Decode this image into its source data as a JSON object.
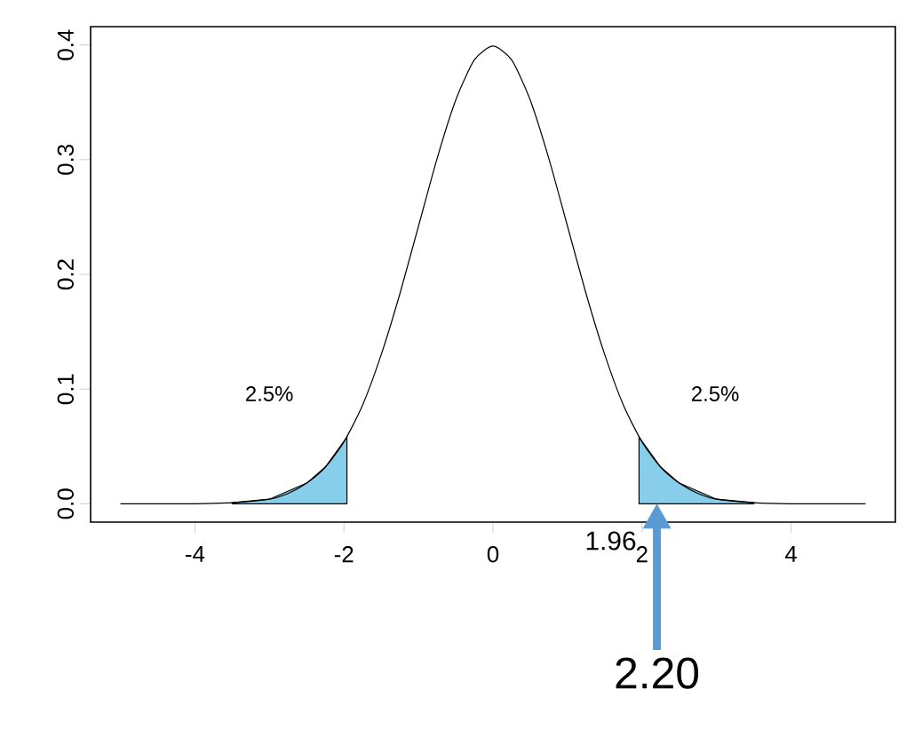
{
  "chart_data": {
    "type": "line",
    "xlim": [
      -5.4,
      5.4
    ],
    "ylim": [
      -0.016,
      0.416
    ],
    "xticks": [
      -4,
      -2,
      0,
      2,
      4
    ],
    "yticks": [
      {
        "value": 0,
        "label": "0.0"
      },
      0.1,
      0.2,
      0.3,
      0.4
    ],
    "series": [
      {
        "type": "area",
        "color": "#87ceeb",
        "x": [
          -3.5,
          -3,
          -2.5,
          -2.25,
          -1.96
        ],
        "values": [
          0.001,
          0.004,
          0.018,
          0.032,
          0.058
        ]
      },
      {
        "type": "area",
        "color": "#87ceeb",
        "x": [
          1.96,
          2.25,
          2.5,
          3,
          3.5
        ],
        "values": [
          0.058,
          0.032,
          0.018,
          0.004,
          0.001
        ]
      },
      {
        "color": "#000000",
        "x": [
          -5,
          -4.5,
          -4,
          -3.5,
          -3,
          -2.75,
          -2.5,
          -2.25,
          -2,
          -1.75,
          -1.5,
          -1.25,
          -1,
          -0.75,
          -0.5,
          -0.25,
          0,
          0.25,
          0.5,
          0.75,
          1,
          1.25,
          1.5,
          1.75,
          2,
          2.25,
          2.5,
          2.75,
          3,
          3.5,
          4,
          4.5,
          5
        ],
        "values": [
          0,
          0,
          0,
          0.001,
          0.004,
          0.009,
          0.018,
          0.032,
          0.054,
          0.086,
          0.13,
          0.183,
          0.242,
          0.301,
          0.352,
          0.387,
          0.399,
          0.387,
          0.352,
          0.301,
          0.242,
          0.183,
          0.13,
          0.086,
          0.054,
          0.032,
          0.018,
          0.009,
          0.004,
          0.001,
          0,
          0,
          0
        ]
      }
    ],
    "annotations": [
      "2.5%",
      "2.5%",
      "1.96",
      "2.20"
    ]
  }
}
